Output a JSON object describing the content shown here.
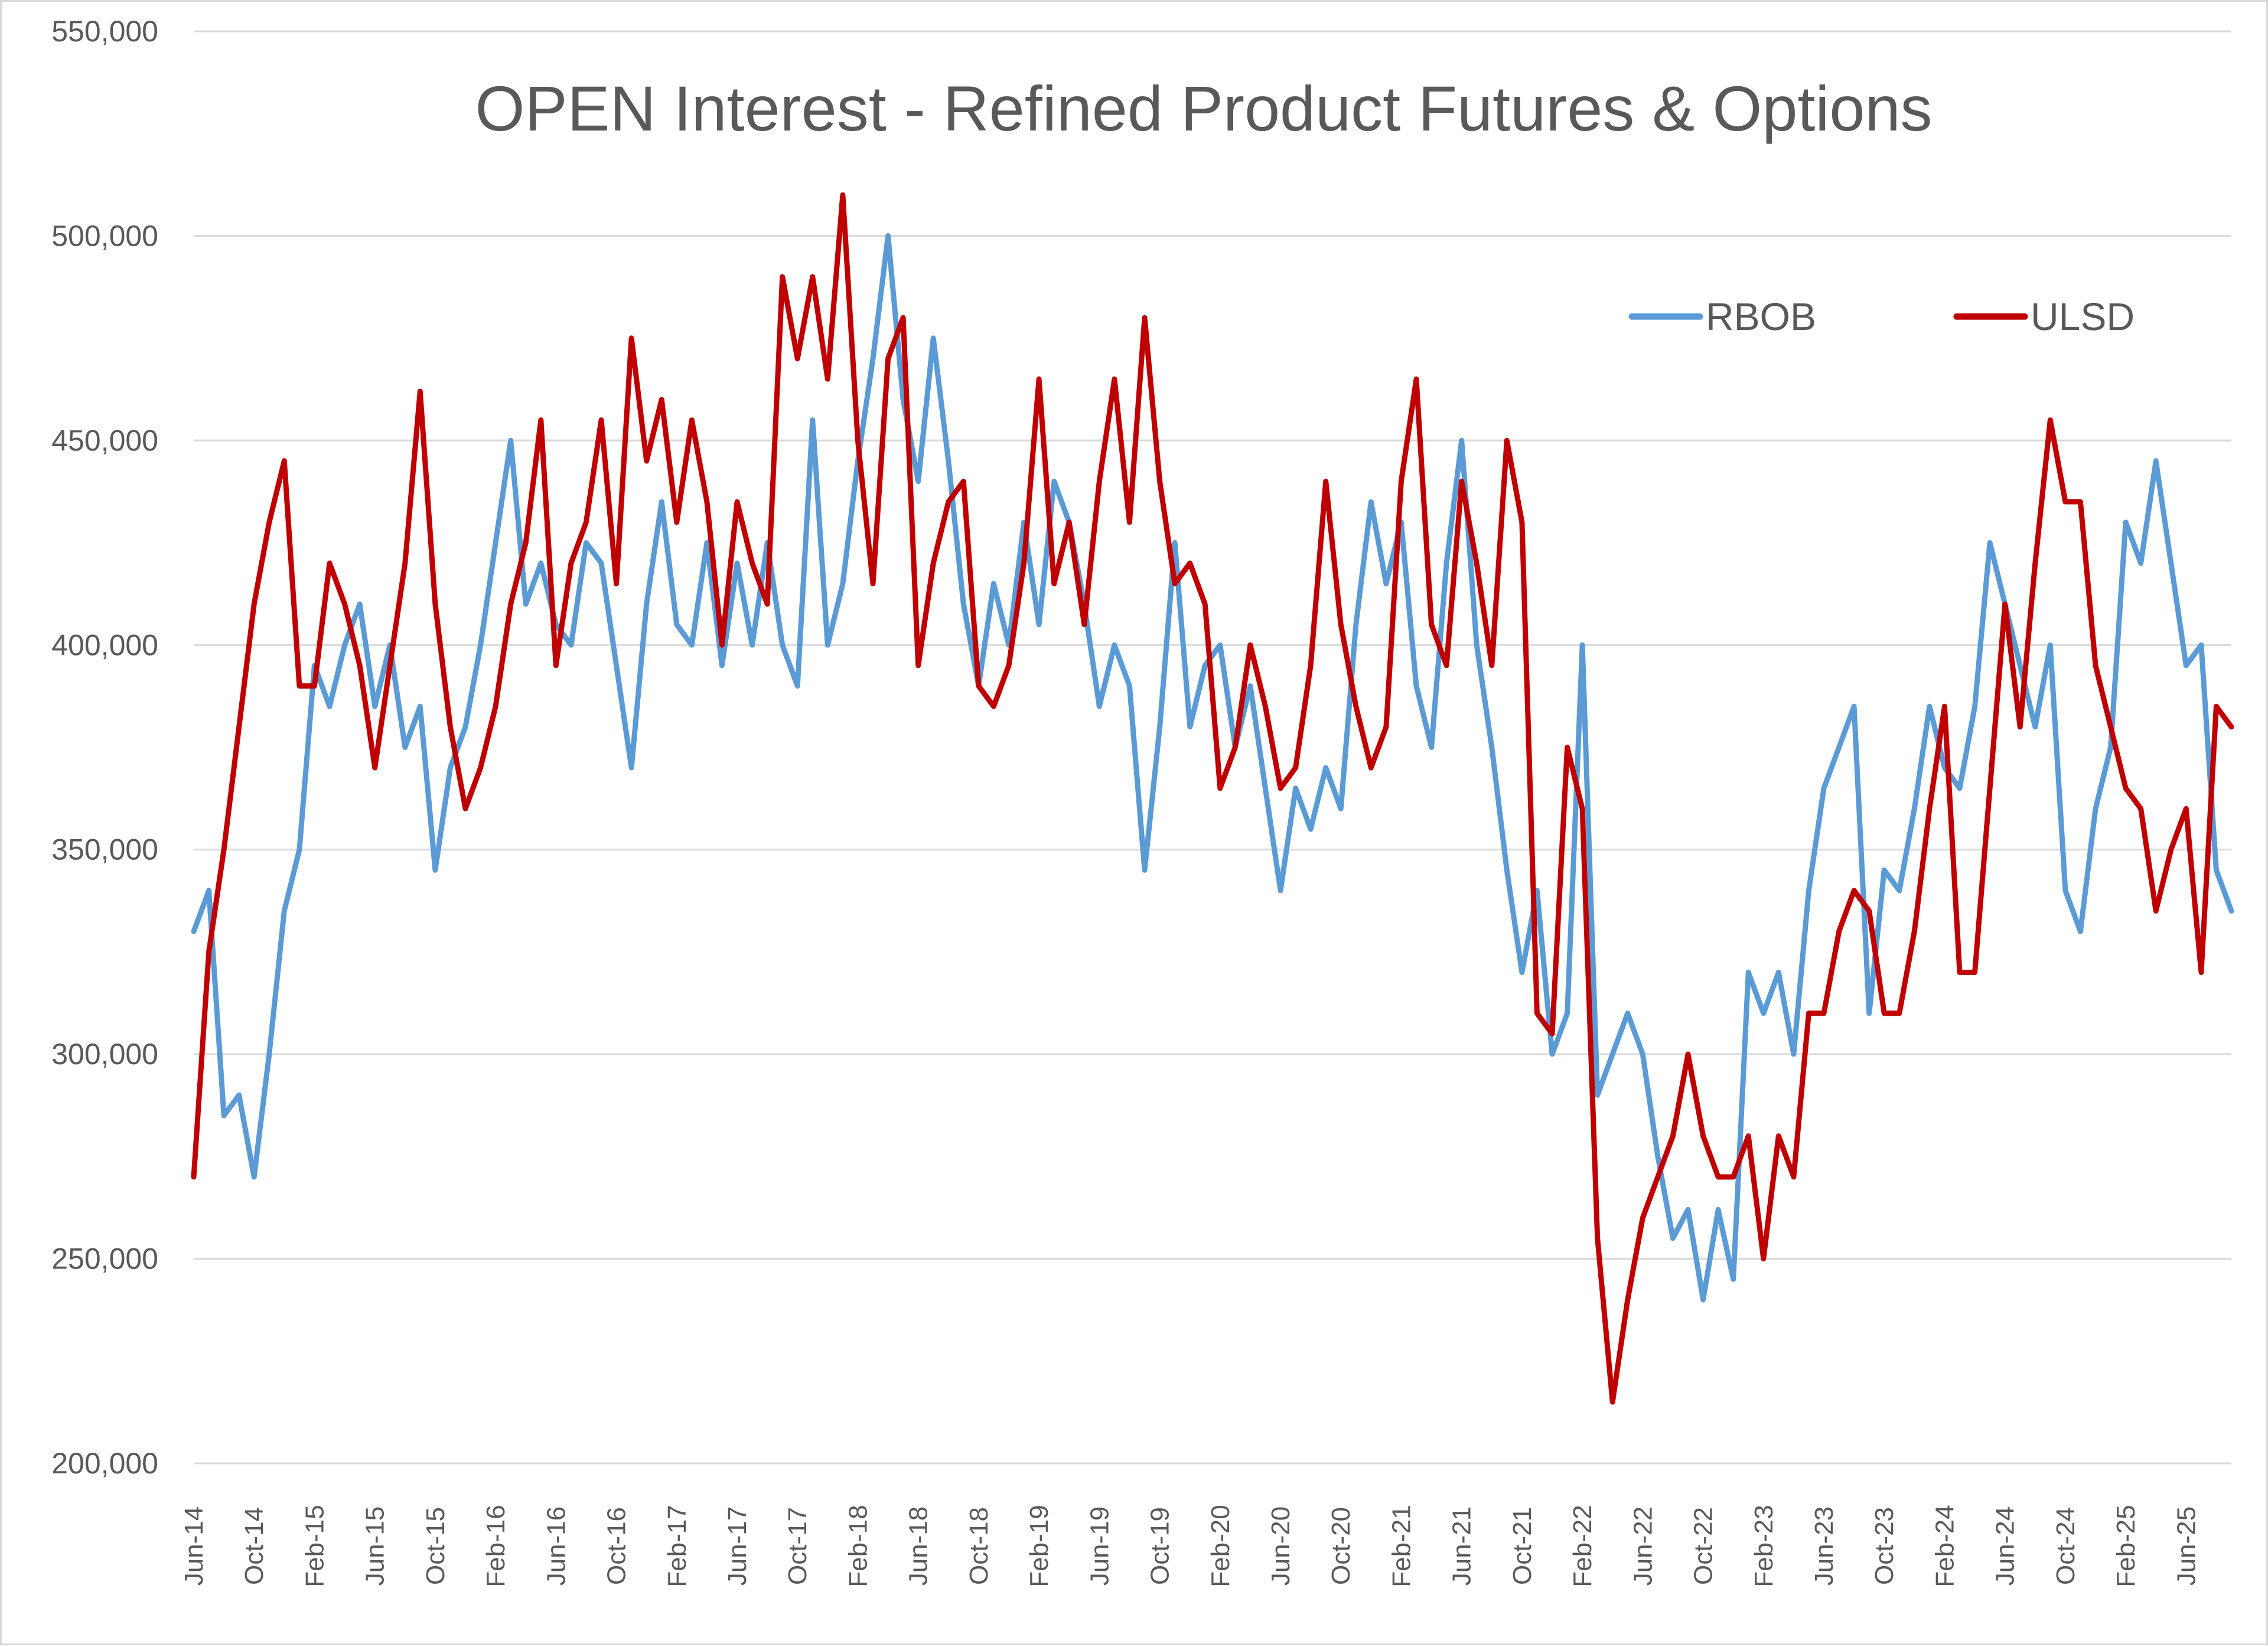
{
  "chart_data": {
    "type": "line",
    "title": "OPEN Interest - Refined Product Futures & Options",
    "xlabel": "",
    "ylabel": "",
    "ylim": [
      200000,
      550000
    ],
    "yticks": [
      "200,000",
      "250,000",
      "300,000",
      "350,000",
      "400,000",
      "450,000",
      "500,000",
      "550,000"
    ],
    "ytick_values": [
      200000,
      250000,
      300000,
      350000,
      400000,
      450000,
      500000,
      550000
    ],
    "xlim": [
      "2014-06",
      "2025-09"
    ],
    "xtick_labels": [
      "Jun-14",
      "Oct-14",
      "Feb-15",
      "Jun-15",
      "Oct-15",
      "Feb-16",
      "Jun-16",
      "Oct-16",
      "Feb-17",
      "Jun-17",
      "Oct-17",
      "Feb-18",
      "Jun-18",
      "Oct-18",
      "Feb-19",
      "Jun-19",
      "Oct-19",
      "Feb-20",
      "Jun-20",
      "Oct-20",
      "Feb-21",
      "Jun-21",
      "Oct-21",
      "Feb-22",
      "Jun-22",
      "Oct-22",
      "Feb-23",
      "Jun-23",
      "Oct-23",
      "Feb-24",
      "Jun-24",
      "Oct-24",
      "Feb-25",
      "Jun-25"
    ],
    "grid": true,
    "legend_position": "top-right",
    "series": [
      {
        "name": "RBOB",
        "color": "#5b9bd5",
        "points": [
          [
            "2014-06",
            330000
          ],
          [
            "2014-07",
            340000
          ],
          [
            "2014-08",
            285000
          ],
          [
            "2014-09",
            290000
          ],
          [
            "2014-10",
            270000
          ],
          [
            "2014-11",
            300000
          ],
          [
            "2014-12",
            335000
          ],
          [
            "2015-01",
            350000
          ],
          [
            "2015-02",
            395000
          ],
          [
            "2015-03",
            385000
          ],
          [
            "2015-04",
            400000
          ],
          [
            "2015-05",
            410000
          ],
          [
            "2015-06",
            385000
          ],
          [
            "2015-07",
            400000
          ],
          [
            "2015-08",
            375000
          ],
          [
            "2015-09",
            385000
          ],
          [
            "2015-10",
            345000
          ],
          [
            "2015-11",
            370000
          ],
          [
            "2015-12",
            380000
          ],
          [
            "2016-01",
            400000
          ],
          [
            "2016-02",
            425000
          ],
          [
            "2016-03",
            450000
          ],
          [
            "2016-04",
            410000
          ],
          [
            "2016-05",
            420000
          ],
          [
            "2016-06",
            405000
          ],
          [
            "2016-07",
            400000
          ],
          [
            "2016-08",
            425000
          ],
          [
            "2016-09",
            420000
          ],
          [
            "2016-10",
            395000
          ],
          [
            "2016-11",
            370000
          ],
          [
            "2016-12",
            410000
          ],
          [
            "2017-01",
            435000
          ],
          [
            "2017-02",
            405000
          ],
          [
            "2017-03",
            400000
          ],
          [
            "2017-04",
            425000
          ],
          [
            "2017-05",
            395000
          ],
          [
            "2017-06",
            420000
          ],
          [
            "2017-07",
            400000
          ],
          [
            "2017-08",
            425000
          ],
          [
            "2017-09",
            400000
          ],
          [
            "2017-10",
            390000
          ],
          [
            "2017-11",
            455000
          ],
          [
            "2017-12",
            400000
          ],
          [
            "2018-01",
            415000
          ],
          [
            "2018-02",
            445000
          ],
          [
            "2018-03",
            470000
          ],
          [
            "2018-04",
            500000
          ],
          [
            "2018-05",
            460000
          ],
          [
            "2018-06",
            440000
          ],
          [
            "2018-07",
            475000
          ],
          [
            "2018-08",
            445000
          ],
          [
            "2018-09",
            410000
          ],
          [
            "2018-10",
            390000
          ],
          [
            "2018-11",
            415000
          ],
          [
            "2018-12",
            400000
          ],
          [
            "2019-01",
            430000
          ],
          [
            "2019-02",
            405000
          ],
          [
            "2019-03",
            440000
          ],
          [
            "2019-04",
            430000
          ],
          [
            "2019-05",
            410000
          ],
          [
            "2019-06",
            385000
          ],
          [
            "2019-07",
            400000
          ],
          [
            "2019-08",
            390000
          ],
          [
            "2019-09",
            345000
          ],
          [
            "2019-10",
            380000
          ],
          [
            "2019-11",
            425000
          ],
          [
            "2019-12",
            380000
          ],
          [
            "2020-01",
            395000
          ],
          [
            "2020-02",
            400000
          ],
          [
            "2020-03",
            375000
          ],
          [
            "2020-04",
            390000
          ],
          [
            "2020-05",
            365000
          ],
          [
            "2020-06",
            340000
          ],
          [
            "2020-07",
            365000
          ],
          [
            "2020-08",
            355000
          ],
          [
            "2020-09",
            370000
          ],
          [
            "2020-10",
            360000
          ],
          [
            "2020-11",
            405000
          ],
          [
            "2020-12",
            435000
          ],
          [
            "2021-01",
            415000
          ],
          [
            "2021-02",
            430000
          ],
          [
            "2021-03",
            390000
          ],
          [
            "2021-04",
            375000
          ],
          [
            "2021-05",
            420000
          ],
          [
            "2021-06",
            450000
          ],
          [
            "2021-07",
            400000
          ],
          [
            "2021-08",
            375000
          ],
          [
            "2021-09",
            345000
          ],
          [
            "2021-10",
            320000
          ],
          [
            "2021-11",
            340000
          ],
          [
            "2021-12",
            300000
          ],
          [
            "2022-01",
            310000
          ],
          [
            "2022-02",
            400000
          ],
          [
            "2022-03",
            290000
          ],
          [
            "2022-04",
            300000
          ],
          [
            "2022-05",
            310000
          ],
          [
            "2022-06",
            300000
          ],
          [
            "2022-07",
            275000
          ],
          [
            "2022-08",
            255000
          ],
          [
            "2022-09",
            262000
          ],
          [
            "2022-10",
            240000
          ],
          [
            "2022-11",
            262000
          ],
          [
            "2022-12",
            245000
          ],
          [
            "2023-01",
            320000
          ],
          [
            "2023-02",
            310000
          ],
          [
            "2023-03",
            320000
          ],
          [
            "2023-04",
            300000
          ],
          [
            "2023-05",
            340000
          ],
          [
            "2023-06",
            365000
          ],
          [
            "2023-07",
            375000
          ],
          [
            "2023-08",
            385000
          ],
          [
            "2023-09",
            310000
          ],
          [
            "2023-10",
            345000
          ],
          [
            "2023-11",
            340000
          ],
          [
            "2023-12",
            360000
          ],
          [
            "2024-01",
            385000
          ],
          [
            "2024-02",
            370000
          ],
          [
            "2024-03",
            365000
          ],
          [
            "2024-04",
            385000
          ],
          [
            "2024-05",
            425000
          ],
          [
            "2024-06",
            410000
          ],
          [
            "2024-07",
            395000
          ],
          [
            "2024-08",
            380000
          ],
          [
            "2024-09",
            400000
          ],
          [
            "2024-10",
            340000
          ],
          [
            "2024-11",
            330000
          ],
          [
            "2024-12",
            360000
          ],
          [
            "2025-01",
            375000
          ],
          [
            "2025-02",
            430000
          ],
          [
            "2025-03",
            420000
          ],
          [
            "2025-04",
            445000
          ],
          [
            "2025-05",
            420000
          ],
          [
            "2025-06",
            395000
          ],
          [
            "2025-07",
            400000
          ],
          [
            "2025-08",
            345000
          ],
          [
            "2025-09",
            335000
          ]
        ]
      },
      {
        "name": "ULSD",
        "color": "#c00000",
        "points": [
          [
            "2014-06",
            270000
          ],
          [
            "2014-07",
            325000
          ],
          [
            "2014-08",
            350000
          ],
          [
            "2014-09",
            380000
          ],
          [
            "2014-10",
            410000
          ],
          [
            "2014-11",
            430000
          ],
          [
            "2014-12",
            445000
          ],
          [
            "2015-01",
            390000
          ],
          [
            "2015-02",
            390000
          ],
          [
            "2015-03",
            420000
          ],
          [
            "2015-04",
            410000
          ],
          [
            "2015-05",
            395000
          ],
          [
            "2015-06",
            370000
          ],
          [
            "2015-07",
            395000
          ],
          [
            "2015-08",
            420000
          ],
          [
            "2015-09",
            462000
          ],
          [
            "2015-10",
            410000
          ],
          [
            "2015-11",
            380000
          ],
          [
            "2015-12",
            360000
          ],
          [
            "2016-01",
            370000
          ],
          [
            "2016-02",
            385000
          ],
          [
            "2016-03",
            410000
          ],
          [
            "2016-04",
            425000
          ],
          [
            "2016-05",
            455000
          ],
          [
            "2016-06",
            395000
          ],
          [
            "2016-07",
            420000
          ],
          [
            "2016-08",
            430000
          ],
          [
            "2016-09",
            455000
          ],
          [
            "2016-10",
            415000
          ],
          [
            "2016-11",
            475000
          ],
          [
            "2016-12",
            445000
          ],
          [
            "2017-01",
            460000
          ],
          [
            "2017-02",
            430000
          ],
          [
            "2017-03",
            455000
          ],
          [
            "2017-04",
            435000
          ],
          [
            "2017-05",
            400000
          ],
          [
            "2017-06",
            435000
          ],
          [
            "2017-07",
            420000
          ],
          [
            "2017-08",
            410000
          ],
          [
            "2017-09",
            490000
          ],
          [
            "2017-10",
            470000
          ],
          [
            "2017-11",
            490000
          ],
          [
            "2017-12",
            465000
          ],
          [
            "2018-01",
            510000
          ],
          [
            "2018-02",
            450000
          ],
          [
            "2018-03",
            415000
          ],
          [
            "2018-04",
            470000
          ],
          [
            "2018-05",
            480000
          ],
          [
            "2018-06",
            395000
          ],
          [
            "2018-07",
            420000
          ],
          [
            "2018-08",
            435000
          ],
          [
            "2018-09",
            440000
          ],
          [
            "2018-10",
            390000
          ],
          [
            "2018-11",
            385000
          ],
          [
            "2018-12",
            395000
          ],
          [
            "2019-01",
            420000
          ],
          [
            "2019-02",
            465000
          ],
          [
            "2019-03",
            415000
          ],
          [
            "2019-04",
            430000
          ],
          [
            "2019-05",
            405000
          ],
          [
            "2019-06",
            440000
          ],
          [
            "2019-07",
            465000
          ],
          [
            "2019-08",
            430000
          ],
          [
            "2019-09",
            480000
          ],
          [
            "2019-10",
            440000
          ],
          [
            "2019-11",
            415000
          ],
          [
            "2019-12",
            420000
          ],
          [
            "2020-01",
            410000
          ],
          [
            "2020-02",
            365000
          ],
          [
            "2020-03",
            375000
          ],
          [
            "2020-04",
            400000
          ],
          [
            "2020-05",
            385000
          ],
          [
            "2020-06",
            365000
          ],
          [
            "2020-07",
            370000
          ],
          [
            "2020-08",
            395000
          ],
          [
            "2020-09",
            440000
          ],
          [
            "2020-10",
            405000
          ],
          [
            "2020-11",
            385000
          ],
          [
            "2020-12",
            370000
          ],
          [
            "2021-01",
            380000
          ],
          [
            "2021-02",
            440000
          ],
          [
            "2021-03",
            465000
          ],
          [
            "2021-04",
            405000
          ],
          [
            "2021-05",
            395000
          ],
          [
            "2021-06",
            440000
          ],
          [
            "2021-07",
            420000
          ],
          [
            "2021-08",
            395000
          ],
          [
            "2021-09",
            450000
          ],
          [
            "2021-10",
            430000
          ],
          [
            "2021-11",
            310000
          ],
          [
            "2021-12",
            305000
          ],
          [
            "2022-01",
            375000
          ],
          [
            "2022-02",
            360000
          ],
          [
            "2022-03",
            255000
          ],
          [
            "2022-04",
            215000
          ],
          [
            "2022-05",
            240000
          ],
          [
            "2022-06",
            260000
          ],
          [
            "2022-07",
            270000
          ],
          [
            "2022-08",
            280000
          ],
          [
            "2022-09",
            300000
          ],
          [
            "2022-10",
            280000
          ],
          [
            "2022-11",
            270000
          ],
          [
            "2022-12",
            270000
          ],
          [
            "2023-01",
            280000
          ],
          [
            "2023-02",
            250000
          ],
          [
            "2023-03",
            280000
          ],
          [
            "2023-04",
            270000
          ],
          [
            "2023-05",
            310000
          ],
          [
            "2023-06",
            310000
          ],
          [
            "2023-07",
            330000
          ],
          [
            "2023-08",
            340000
          ],
          [
            "2023-09",
            335000
          ],
          [
            "2023-10",
            310000
          ],
          [
            "2023-11",
            310000
          ],
          [
            "2023-12",
            330000
          ],
          [
            "2024-01",
            360000
          ],
          [
            "2024-02",
            385000
          ],
          [
            "2024-03",
            320000
          ],
          [
            "2024-04",
            320000
          ],
          [
            "2024-05",
            365000
          ],
          [
            "2024-06",
            410000
          ],
          [
            "2024-07",
            380000
          ],
          [
            "2024-08",
            420000
          ],
          [
            "2024-09",
            455000
          ],
          [
            "2024-10",
            435000
          ],
          [
            "2024-11",
            435000
          ],
          [
            "2024-12",
            395000
          ],
          [
            "2025-01",
            380000
          ],
          [
            "2025-02",
            365000
          ],
          [
            "2025-03",
            360000
          ],
          [
            "2025-04",
            335000
          ],
          [
            "2025-05",
            350000
          ],
          [
            "2025-06",
            360000
          ],
          [
            "2025-07",
            320000
          ],
          [
            "2025-08",
            385000
          ],
          [
            "2025-09",
            380000
          ]
        ]
      }
    ]
  }
}
